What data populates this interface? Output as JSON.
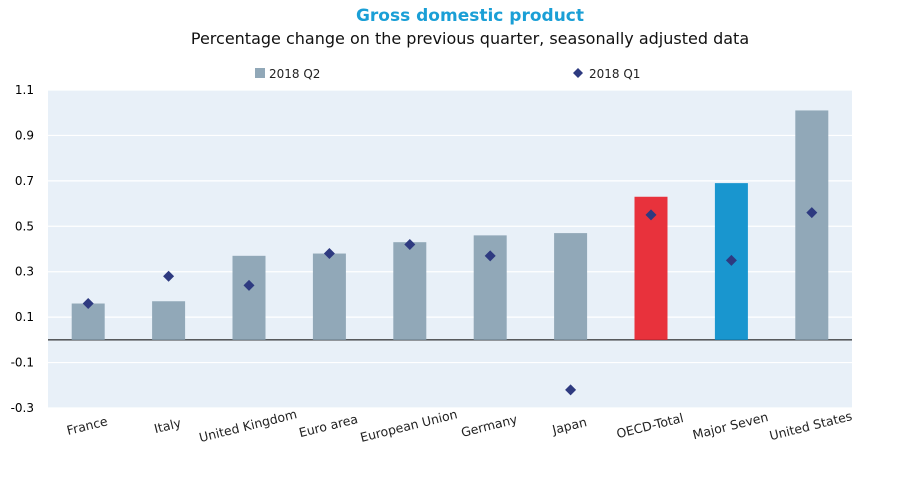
{
  "chart_data": {
    "type": "bar",
    "title": "Gross domestic product",
    "subtitle": "Percentage change on the previous quarter, seasonally adjusted data",
    "categories": [
      "France",
      "Italy",
      "United Kingdom",
      "Euro area",
      "European Union",
      "Germany",
      "Japan",
      "OECD-Total",
      "Major Seven",
      "United States"
    ],
    "series": [
      {
        "name": "2018 Q2",
        "kind": "bar",
        "color": "#91a8b8",
        "values": [
          0.16,
          0.17,
          0.37,
          0.38,
          0.43,
          0.46,
          0.47,
          0.63,
          0.69,
          1.01
        ],
        "point_colors": [
          null,
          null,
          null,
          null,
          null,
          null,
          null,
          "#e8323c",
          "#1996cf",
          null
        ]
      },
      {
        "name": "2018 Q1",
        "kind": "marker",
        "color": "#2e3a80",
        "values": [
          0.16,
          0.28,
          0.24,
          0.38,
          0.42,
          0.37,
          -0.22,
          0.55,
          0.35,
          0.56
        ]
      }
    ],
    "yticks": [
      "1.1",
      "0.9",
      "0.7",
      "0.5",
      "0.3",
      "0.1",
      "-0.1",
      "-0.3"
    ],
    "ylim": [
      -0.3,
      1.1
    ],
    "grid": true,
    "background": "#e8f0f8",
    "legend_position": "top"
  }
}
